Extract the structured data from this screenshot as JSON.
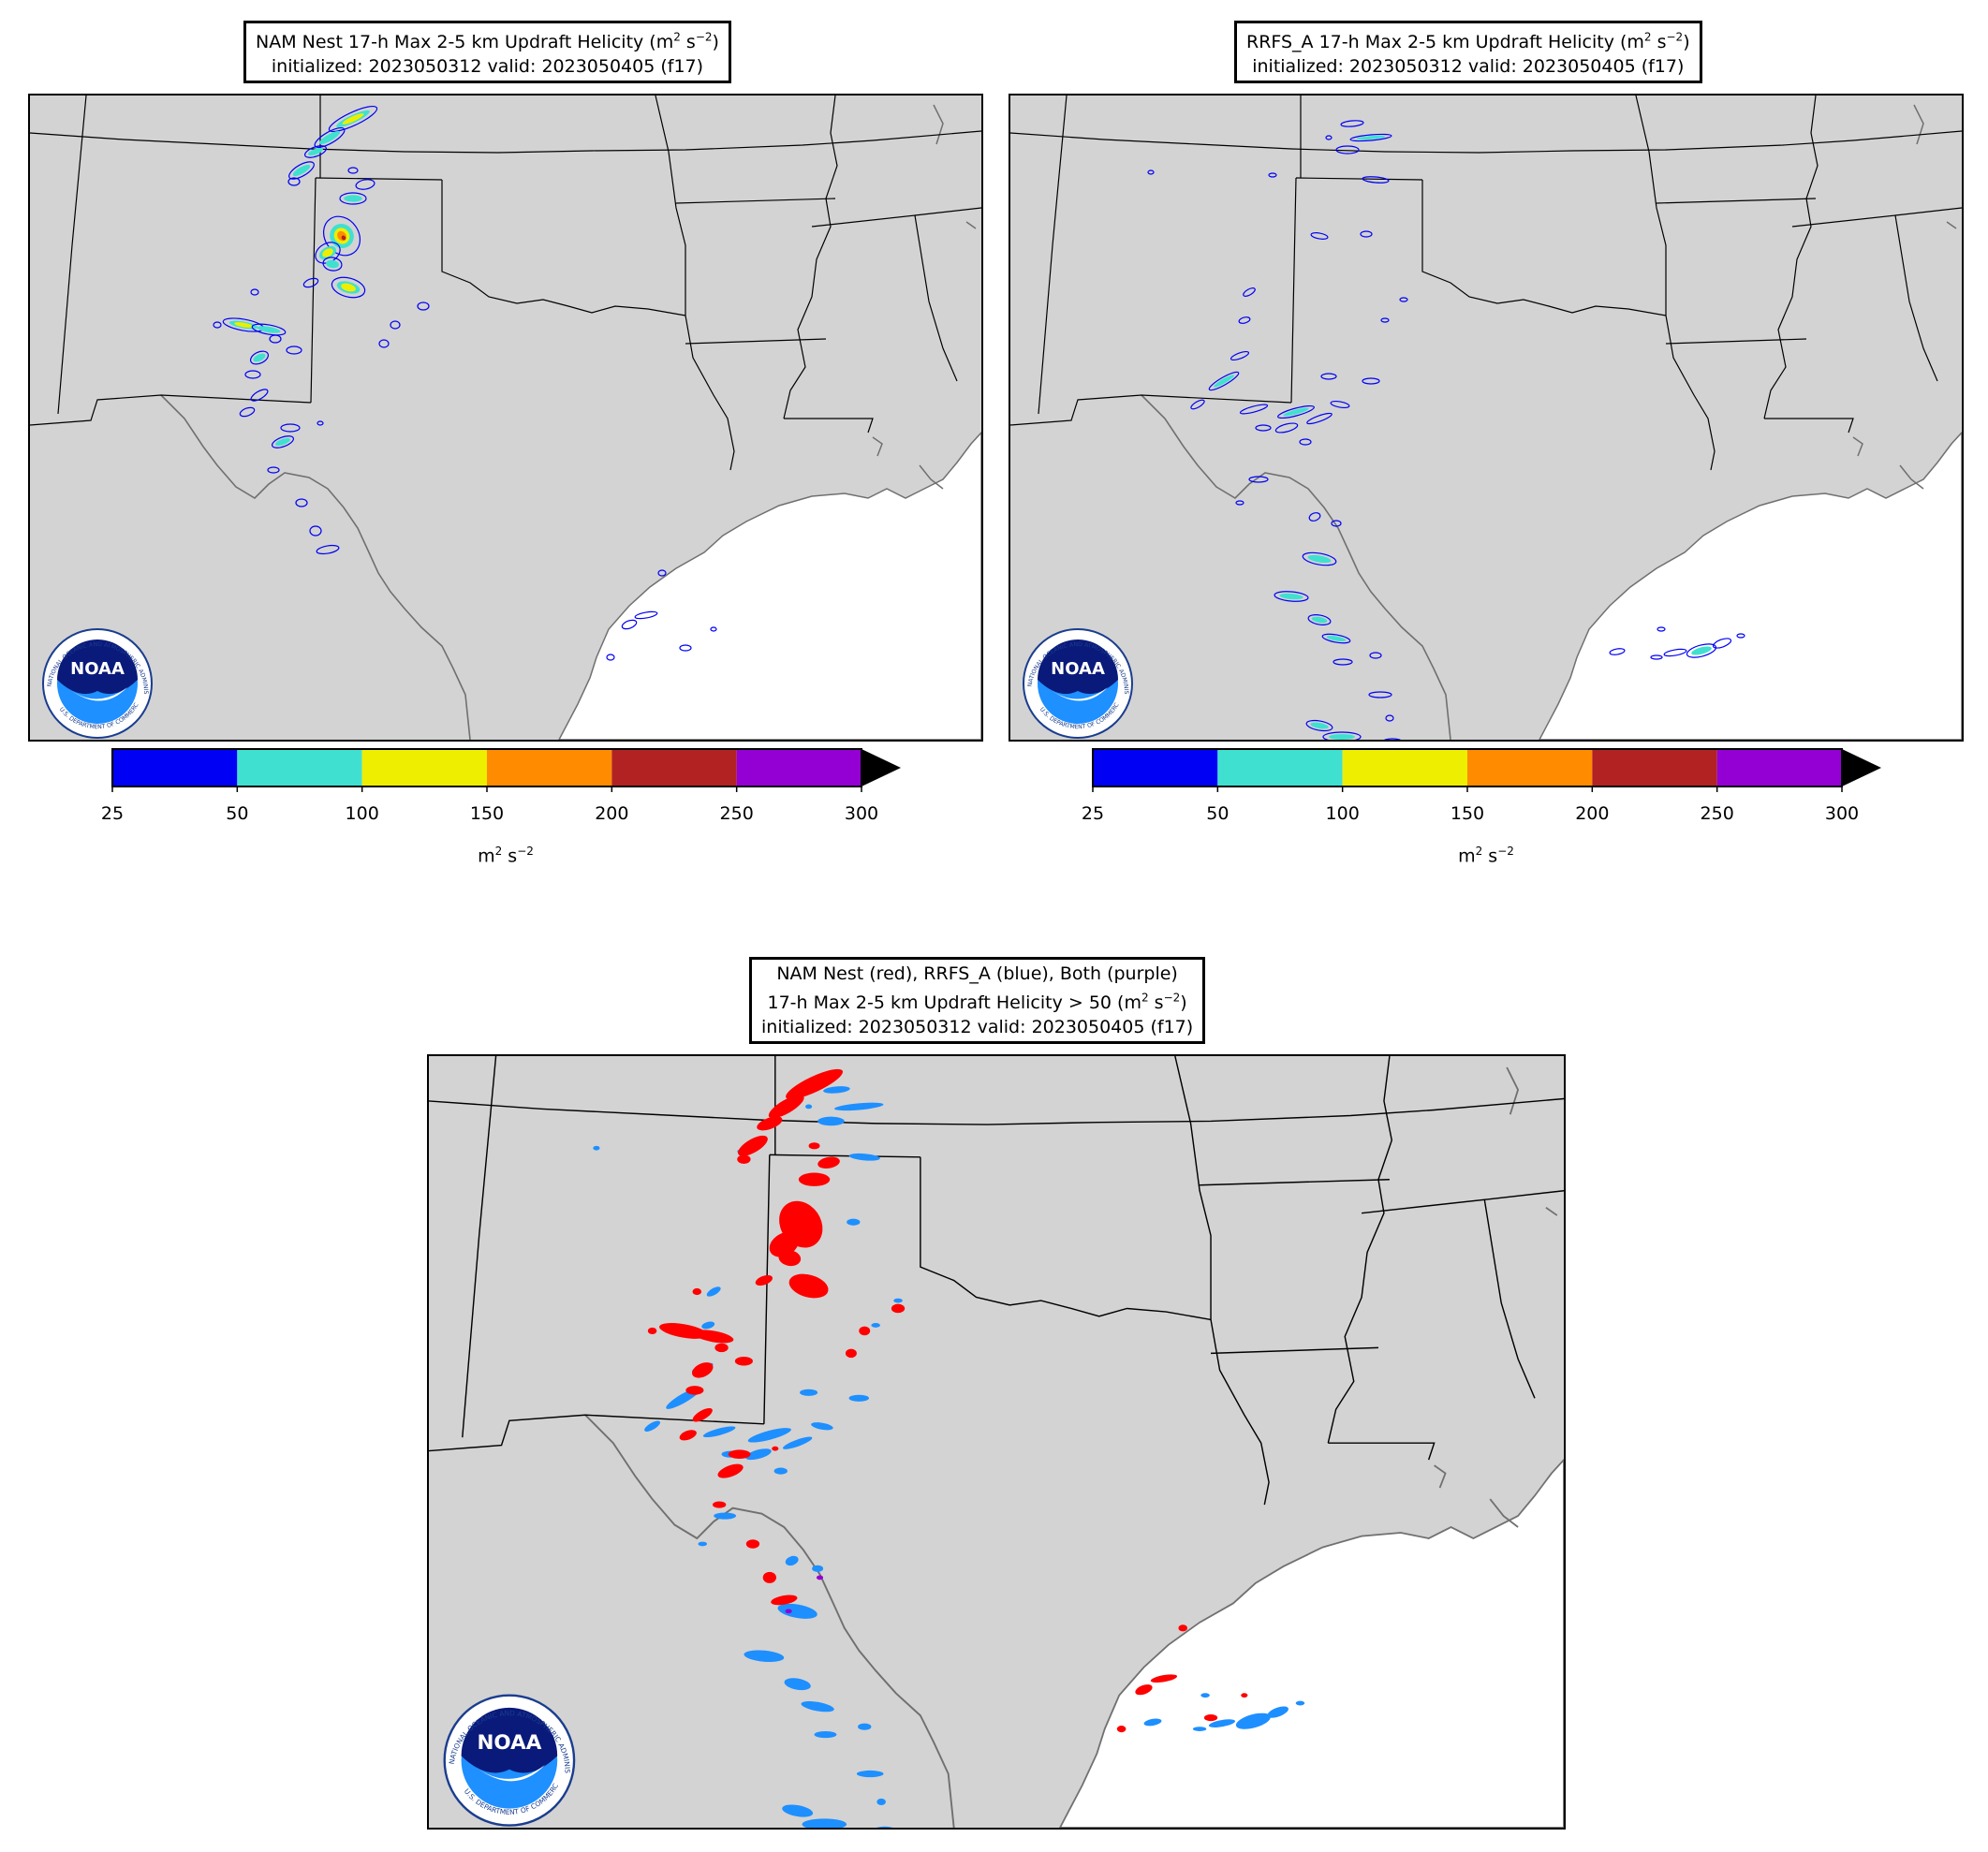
{
  "panels": [
    {
      "id": "nam",
      "title_line1_prefix": "NAM Nest 17-h Max 2-5 km Updraft Helicity (m",
      "title_line2": "initialized: 2023050312 valid: 2023050405 (f17)"
    },
    {
      "id": "rrfs",
      "title_line1_prefix": "RRFS_A 17-h Max 2-5 km Updraft Helicity (m",
      "title_line2": "initialized: 2023050312 valid: 2023050405 (f17)"
    }
  ],
  "comparison": {
    "title_line1": "NAM Nest (red), RRFS_A (blue), Both (purple)",
    "title_line2_prefix": "17-h Max 2-5 km Updraft Helicity > 50 (m",
    "title_line3": "initialized: 2023050312 valid: 2023050405 (f17)"
  },
  "units": {
    "base": "m",
    "exp1": "2",
    "mid": " s",
    "exp2": "−2",
    "close": ")"
  },
  "colorbar": {
    "ticks": [
      "25",
      "50",
      "100",
      "150",
      "200",
      "250",
      "300"
    ],
    "colors": [
      "#0000f5",
      "#40e0d0",
      "#eeee00",
      "#ff8c00",
      "#b22222",
      "#9400d3"
    ],
    "extend_color": "#000000",
    "label_base": "m",
    "label_exp1": "2",
    "label_mid": " s",
    "label_exp2": "−2"
  },
  "map_colors": {
    "land": "#d3d3d3",
    "water": "#ffffff",
    "borders": "#000000",
    "coast": "#707070",
    "nam": "#ff0000",
    "rrfs": "#1e8fff",
    "both": "#9400d3"
  },
  "logo": {
    "text": "NOAA",
    "ring_text": "NATIONAL OCEANIC AND ATMOSPHERIC ADMINISTRATION",
    "bottom_text": "U.S. DEPARTMENT OF COMMERCE"
  }
}
